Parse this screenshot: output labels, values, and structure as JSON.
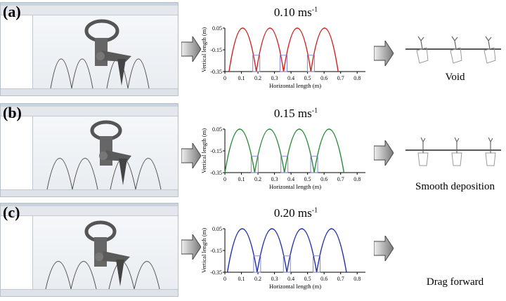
{
  "panels": [
    {
      "label": "(a)",
      "speed": "0.10 ms",
      "speed_exp": "-1",
      "outcome": "Void",
      "curve_color": "#cc2222",
      "chart_data": {
        "type": "line",
        "xlabel": "Horizontal length (m)",
        "ylabel": "Vertical length (m)",
        "xlim": [
          0,
          0.85
        ],
        "ylim": [
          -0.35,
          0.05
        ],
        "xticks": [
          "0",
          "0.1",
          "0.2",
          "0.3",
          "0.4",
          "0.5",
          "0.6",
          "0.7",
          "0.8"
        ],
        "yticks": [
          "-0.35",
          "-0.15",
          "0.05"
        ],
        "arches": [
          [
            0.025,
            0.19
          ],
          [
            0.19,
            0.355
          ],
          [
            0.355,
            0.52
          ],
          [
            0.52,
            0.685
          ]
        ],
        "arch_peak": 0.05,
        "highlight_boxes": [
          0.19,
          0.355,
          0.52
        ]
      }
    },
    {
      "label": "(b)",
      "speed": "0.15 ms",
      "speed_exp": "-1",
      "outcome": "Smooth deposition",
      "curve_color": "#2a8a3a",
      "chart_data": {
        "type": "line",
        "xlabel": "Horizontal length (m)",
        "ylabel": "Vertical length (m)",
        "xlim": [
          0,
          0.85
        ],
        "ylim": [
          -0.35,
          0.05
        ],
        "xticks": [
          "0",
          "0.1",
          "0.2",
          "0.3",
          "0.4",
          "0.5",
          "0.6",
          "0.7",
          "0.8"
        ],
        "yticks": [
          "-0.35",
          "-0.15",
          "0.05"
        ],
        "arches": [
          [
            0.0,
            0.18
          ],
          [
            0.18,
            0.36
          ],
          [
            0.36,
            0.54
          ],
          [
            0.54,
            0.72
          ]
        ],
        "arch_peak": 0.05,
        "highlight_boxes": [
          0.18,
          0.36,
          0.54
        ]
      }
    },
    {
      "label": "(c)",
      "speed": "0.20 ms",
      "speed_exp": "-1",
      "outcome": "Drag forward",
      "curve_color": "#1f2fa8",
      "chart_data": {
        "type": "line",
        "xlabel": "Horizontal length (m)",
        "ylabel": "Vertical length (m)",
        "xlim": [
          0,
          0.85
        ],
        "ylim": [
          -0.35,
          0.05
        ],
        "xticks": [
          "0",
          "0.1",
          "0.2",
          "0.3",
          "0.4",
          "0.5",
          "0.6",
          "0.7",
          "0.8"
        ],
        "yticks": [
          "-0.35",
          "-0.15",
          "0.05"
        ],
        "arches": [
          [
            0.015,
            0.195
          ],
          [
            0.195,
            0.375
          ],
          [
            0.375,
            0.555
          ],
          [
            0.555,
            0.735
          ]
        ],
        "arch_peak": 0.05,
        "highlight_boxes": [
          0.195,
          0.375,
          0.555
        ]
      }
    }
  ]
}
